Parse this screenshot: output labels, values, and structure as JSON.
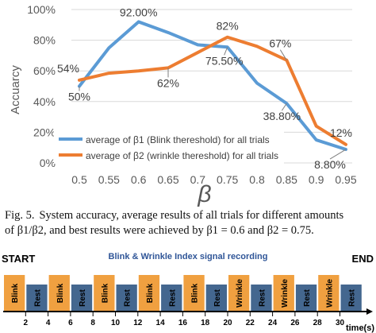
{
  "chart_data": {
    "type": "line",
    "x": [
      0.5,
      0.55,
      0.6,
      0.65,
      0.7,
      0.75,
      0.8,
      0.85,
      0.9,
      0.95
    ],
    "x_tick_labels": [
      "0.5",
      "0.55",
      "0.6",
      "0.65",
      "0.7",
      "0.75",
      "0.8",
      "0.85",
      "0.9",
      "0.95"
    ],
    "xlabel": "β",
    "ylabel": "Accuarcy",
    "ylim": [
      0,
      100
    ],
    "y_tick_labels": [
      "0%",
      "20%",
      "40%",
      "60%",
      "80%",
      "100%"
    ],
    "grid": "horizontal",
    "legend_position": "bottom-left",
    "series": [
      {
        "name": "average of β1 (Blink thereshold) for all trials",
        "color": "#5b9bd5",
        "values": [
          50,
          75,
          92,
          85,
          77,
          75.5,
          52,
          38.8,
          15,
          8.8
        ]
      },
      {
        "name": "average of β2 (wrinkle thereshold) for all trials",
        "color": "#ed7d31",
        "values": [
          54,
          58.5,
          60,
          62,
          72,
          82,
          76,
          67,
          24,
          12
        ]
      }
    ],
    "annotations": [
      {
        "text": "92.00%",
        "x": 0.6,
        "y": 92
      },
      {
        "text": "54%",
        "x": 0.5,
        "y": 54
      },
      {
        "text": "50%",
        "x": 0.5,
        "y": 50
      },
      {
        "text": "62%",
        "x": 0.65,
        "y": 62
      },
      {
        "text": "82%",
        "x": 0.75,
        "y": 82
      },
      {
        "text": "75.50%",
        "x": 0.75,
        "y": 75.5
      },
      {
        "text": "67%",
        "x": 0.85,
        "y": 67
      },
      {
        "text": "38.80%",
        "x": 0.85,
        "y": 38.8
      },
      {
        "text": "12%",
        "x": 0.95,
        "y": 12
      },
      {
        "text": "8.80%",
        "x": 0.95,
        "y": 8.8
      }
    ]
  },
  "caption": {
    "fig_label": "Fig. 5.",
    "line1": "System accuracy, average results of all trials for different amounts",
    "line2": "of β1/β2, and best results were achieved by β1 = 0.6 and β2 = 0.75."
  },
  "timeline": {
    "title": "Blink & Wrinkle Index signal recording",
    "start_label": "START",
    "end_label": "END",
    "axis_label": "time(s)",
    "active_color": "#f0a040",
    "rest_color": "#44678f",
    "blocks": [
      "Blink",
      "Rest",
      "Blink",
      "Rest",
      "Blink",
      "Rest",
      "Blink",
      "Rest",
      "Blink",
      "Rest",
      "Wrinkle",
      "Rest",
      "Wrinkle",
      "Rest",
      "Wrinkle",
      "Rest"
    ],
    "ticks": [
      "2",
      "4",
      "6",
      "8",
      "10",
      "12",
      "14",
      "16",
      "18",
      "20",
      "22",
      "24",
      "26",
      "28",
      "30"
    ]
  }
}
